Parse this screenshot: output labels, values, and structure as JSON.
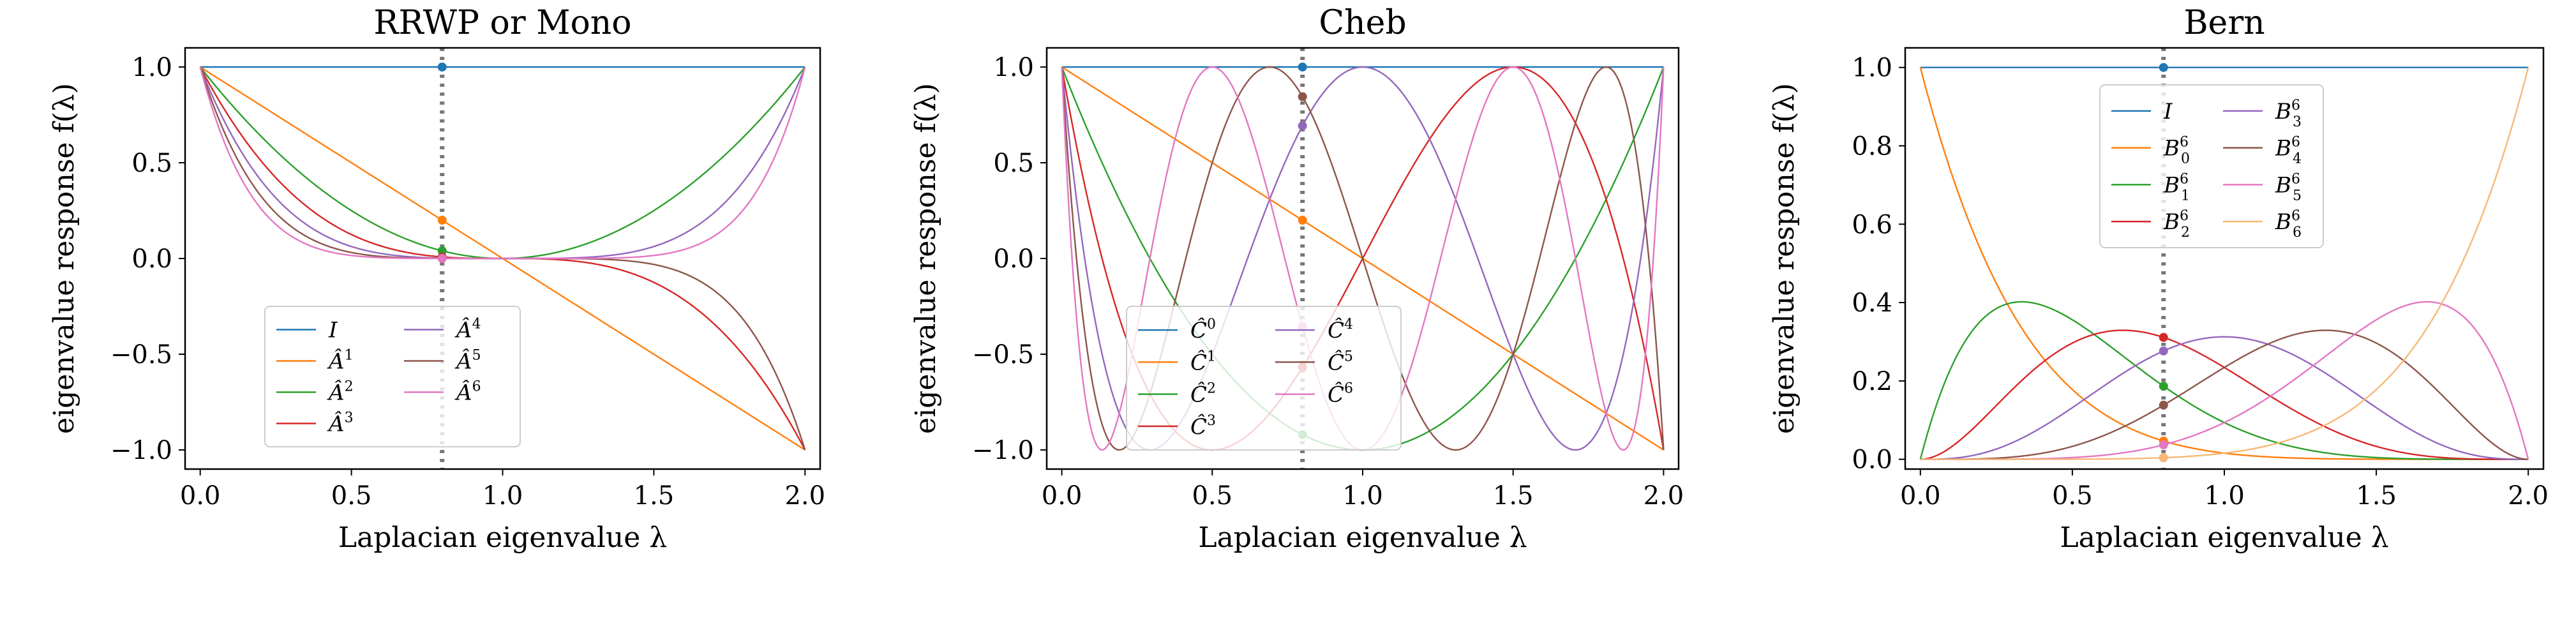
{
  "chart_data": [
    {
      "type": "line",
      "title": "RRWP or Mono",
      "xlabel": "Laplacian eigenvalue λ",
      "ylabel": "eigenvalue response f(λ)",
      "xlim": [
        -0.05,
        2.05
      ],
      "ylim": [
        -1.1,
        1.1
      ],
      "xticks": [
        0.0,
        0.5,
        1.0,
        1.5,
        2.0
      ],
      "xtick_labels": [
        "0.0",
        "0.5",
        "1.0",
        "1.5",
        "2.0"
      ],
      "yticks": [
        -1.0,
        -0.5,
        0.0,
        0.5,
        1.0
      ],
      "ytick_labels": [
        "−1.0",
        "−0.5",
        "0.0",
        "0.5",
        "1.0"
      ],
      "family": "mono",
      "vline_x": 0.8,
      "legend": {
        "placement": "lower-center",
        "columns": 2,
        "items": [
          {
            "base": "I",
            "sup": "",
            "sub": ""
          },
          {
            "base": "Â",
            "sup": "1",
            "sub": ""
          },
          {
            "base": "Â",
            "sup": "2",
            "sub": ""
          },
          {
            "base": "Â",
            "sup": "3",
            "sub": ""
          },
          {
            "base": "Â",
            "sup": "4",
            "sub": ""
          },
          {
            "base": "Â",
            "sup": "5",
            "sub": ""
          },
          {
            "base": "Â",
            "sup": "6",
            "sub": ""
          }
        ]
      },
      "series": [
        {
          "label_index": 0,
          "color": "#1f77b4",
          "x": [
            0,
            0.25,
            0.5,
            0.75,
            1,
            1.25,
            1.5,
            1.75,
            2
          ],
          "y": [
            1,
            1,
            1,
            1,
            1,
            1,
            1,
            1,
            1
          ]
        },
        {
          "label_index": 1,
          "color": "#ff7f0e",
          "x": [
            0,
            0.5,
            1,
            1.5,
            2
          ],
          "y": [
            1,
            0.5,
            0,
            -0.5,
            -1
          ]
        },
        {
          "label_index": 2,
          "color": "#2ca02c",
          "x": [
            0,
            0.5,
            1,
            1.5,
            2
          ],
          "y": [
            1,
            0.25,
            0,
            0.25,
            1
          ]
        },
        {
          "label_index": 3,
          "color": "#d62728",
          "x": [
            0,
            0.5,
            1,
            1.5,
            2
          ],
          "y": [
            1,
            0.125,
            0,
            -0.125,
            -1
          ]
        },
        {
          "label_index": 4,
          "color": "#9467bd",
          "x": [
            0,
            0.5,
            1,
            1.5,
            2
          ],
          "y": [
            1,
            0.0625,
            0,
            0.0625,
            1
          ]
        },
        {
          "label_index": 5,
          "color": "#8c564b",
          "x": [
            0,
            0.5,
            1,
            1.5,
            2
          ],
          "y": [
            1,
            0.031,
            0,
            -0.031,
            -1
          ]
        },
        {
          "label_index": 6,
          "color": "#e377c2",
          "x": [
            0,
            0.5,
            1,
            1.5,
            2
          ],
          "y": [
            1,
            0.016,
            0,
            0.016,
            1
          ]
        }
      ]
    },
    {
      "type": "line",
      "title": "Cheb",
      "xlabel": "Laplacian eigenvalue λ",
      "ylabel": "eigenvalue response f(λ)",
      "xlim": [
        -0.05,
        2.05
      ],
      "ylim": [
        -1.1,
        1.1
      ],
      "xticks": [
        0.0,
        0.5,
        1.0,
        1.5,
        2.0
      ],
      "xtick_labels": [
        "0.0",
        "0.5",
        "1.0",
        "1.5",
        "2.0"
      ],
      "yticks": [
        -1.0,
        -0.5,
        0.0,
        0.5,
        1.0
      ],
      "ytick_labels": [
        "−1.0",
        "−0.5",
        "0.0",
        "0.5",
        "1.0"
      ],
      "family": "cheb",
      "vline_x": 0.8,
      "legend": {
        "placement": "lower-center",
        "columns": 2,
        "items": [
          {
            "base": "Ĉ",
            "sup": "0",
            "sub": ""
          },
          {
            "base": "Ĉ",
            "sup": "1",
            "sub": ""
          },
          {
            "base": "Ĉ",
            "sup": "2",
            "sub": ""
          },
          {
            "base": "Ĉ",
            "sup": "3",
            "sub": ""
          },
          {
            "base": "Ĉ",
            "sup": "4",
            "sub": ""
          },
          {
            "base": "Ĉ",
            "sup": "5",
            "sub": ""
          },
          {
            "base": "Ĉ",
            "sup": "6",
            "sub": ""
          }
        ]
      },
      "series": [
        {
          "label_index": 0,
          "color": "#1f77b4",
          "x": [
            0,
            0.5,
            1,
            1.5,
            2
          ],
          "y": [
            1,
            1,
            1,
            1,
            1
          ]
        },
        {
          "label_index": 1,
          "color": "#ff7f0e",
          "x": [
            0,
            0.5,
            1,
            1.5,
            2
          ],
          "y": [
            1,
            0.5,
            0,
            -0.5,
            -1
          ]
        },
        {
          "label_index": 2,
          "color": "#2ca02c",
          "x": [
            0,
            0.5,
            1,
            1.5,
            2
          ],
          "y": [
            1,
            -0.5,
            -1,
            -0.5,
            1
          ]
        },
        {
          "label_index": 3,
          "color": "#d62728",
          "x": [
            0,
            0.5,
            1,
            1.5,
            2
          ],
          "y": [
            1,
            -1,
            0,
            1,
            -1
          ]
        },
        {
          "label_index": 4,
          "color": "#9467bd",
          "x": [
            0,
            0.5,
            1,
            1.5,
            2
          ],
          "y": [
            1,
            -0.5,
            1,
            -0.5,
            1
          ]
        },
        {
          "label_index": 5,
          "color": "#8c564b",
          "x": [
            0,
            0.5,
            1,
            1.5,
            2
          ],
          "y": [
            1,
            0.5,
            0,
            -0.5,
            -1
          ]
        },
        {
          "label_index": 6,
          "color": "#e377c2",
          "x": [
            0,
            0.5,
            1,
            1.5,
            2
          ],
          "y": [
            1,
            1,
            -1,
            1,
            1
          ]
        }
      ]
    },
    {
      "type": "line",
      "title": "Bern",
      "xlabel": "Laplacian eigenvalue λ",
      "ylabel": "eigenvalue response f(λ)",
      "xlim": [
        -0.05,
        2.05
      ],
      "ylim": [
        -0.025,
        1.05
      ],
      "xticks": [
        0.0,
        0.5,
        1.0,
        1.5,
        2.0
      ],
      "xtick_labels": [
        "0.0",
        "0.5",
        "1.0",
        "1.5",
        "2.0"
      ],
      "yticks": [
        0.0,
        0.2,
        0.4,
        0.6,
        0.8,
        1.0
      ],
      "ytick_labels": [
        "0.0",
        "0.2",
        "0.4",
        "0.6",
        "0.8",
        "1.0"
      ],
      "family": "bern",
      "vline_x": 0.8,
      "legend": {
        "placement": "upper-center",
        "columns": 2,
        "items": [
          {
            "base": "I",
            "sup": "",
            "sub": ""
          },
          {
            "base": "B",
            "sup": "6",
            "sub": "0"
          },
          {
            "base": "B",
            "sup": "6",
            "sub": "1"
          },
          {
            "base": "B",
            "sup": "6",
            "sub": "2"
          },
          {
            "base": "B",
            "sup": "6",
            "sub": "3"
          },
          {
            "base": "B",
            "sup": "6",
            "sub": "4"
          },
          {
            "base": "B",
            "sup": "6",
            "sub": "5"
          },
          {
            "base": "B",
            "sup": "6",
            "sub": "6"
          }
        ]
      },
      "series": [
        {
          "label_index": 0,
          "color": "#1f77b4",
          "x": [
            0,
            0.5,
            1,
            1.5,
            2
          ],
          "y": [
            1,
            1,
            1,
            1,
            1
          ]
        },
        {
          "label_index": 1,
          "color": "#ff7f0e",
          "x": [
            0,
            0.5,
            1,
            1.5,
            2
          ],
          "y": [
            1,
            0.178,
            0.016,
            0,
            0
          ]
        },
        {
          "label_index": 2,
          "color": "#2ca02c",
          "x": [
            0,
            0.5,
            1,
            1.5,
            2
          ],
          "y": [
            0,
            0.356,
            0.094,
            0.004,
            0
          ]
        },
        {
          "label_index": 3,
          "color": "#d62728",
          "x": [
            0,
            0.5,
            1,
            1.5,
            2
          ],
          "y": [
            0,
            0.297,
            0.234,
            0.033,
            0
          ]
        },
        {
          "label_index": 4,
          "color": "#9467bd",
          "x": [
            0,
            0.5,
            1,
            1.5,
            2
          ],
          "y": [
            0,
            0.132,
            0.312,
            0.132,
            0
          ]
        },
        {
          "label_index": 5,
          "color": "#8c564b",
          "x": [
            0,
            0.5,
            1,
            1.5,
            2
          ],
          "y": [
            0,
            0.033,
            0.234,
            0.297,
            0
          ]
        },
        {
          "label_index": 6,
          "color": "#e377c2",
          "x": [
            0,
            0.5,
            1,
            1.5,
            2
          ],
          "y": [
            0,
            0.004,
            0.094,
            0.356,
            0
          ]
        },
        {
          "label_index": 7,
          "color": "#f7b877",
          "x": [
            0,
            0.5,
            1,
            1.5,
            2
          ],
          "y": [
            0,
            0,
            0.016,
            0.178,
            1
          ]
        }
      ]
    }
  ]
}
